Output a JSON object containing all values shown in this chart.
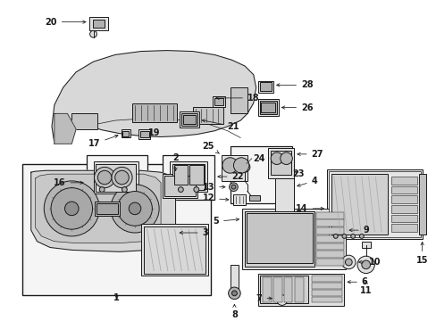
{
  "bg_color": "#ffffff",
  "line_color": "#1a1a1a",
  "fig_width": 4.89,
  "fig_height": 3.6,
  "dpi": 100,
  "label_fs": 7.0,
  "lw": 0.7
}
